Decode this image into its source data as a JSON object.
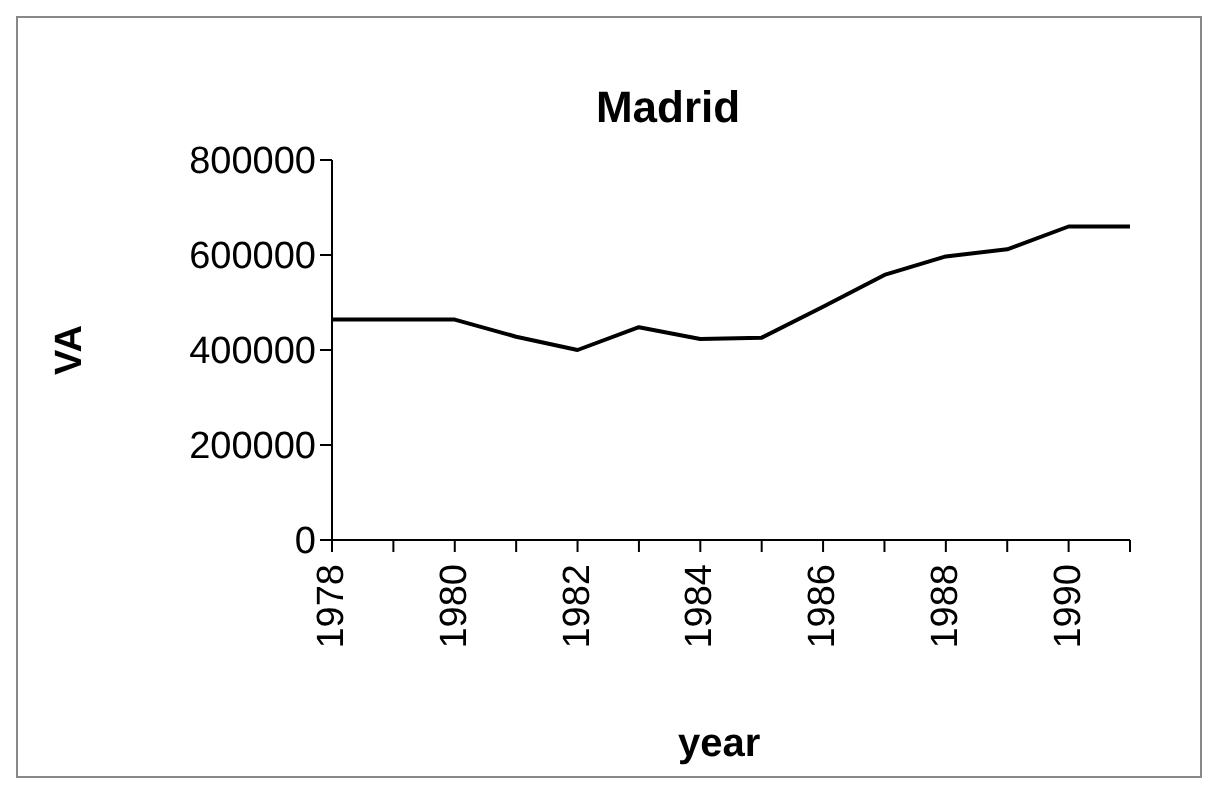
{
  "chart_data": {
    "type": "line",
    "title": "Madrid",
    "xlabel": "year",
    "ylabel": "VA",
    "x": [
      1978,
      1979,
      1980,
      1981,
      1982,
      1983,
      1984,
      1985,
      1986,
      1987,
      1988,
      1989,
      1990,
      1991
    ],
    "series": [
      {
        "color": "#000000",
        "values": [
          464000,
          464000,
          464000,
          428000,
          400000,
          448000,
          423000,
          426000,
          491000,
          558000,
          597000,
          612000,
          660000,
          660000
        ]
      }
    ],
    "xlim": [
      1978,
      1991
    ],
    "xticks": [
      1978,
      {
        "value": 1979,
        "label": null
      },
      1980,
      {
        "value": 1981,
        "label": null
      },
      1982,
      {
        "value": 1983,
        "label": null
      },
      1984,
      {
        "value": 1985,
        "label": null
      },
      1986,
      {
        "value": 1987,
        "label": null
      },
      1988,
      {
        "value": 1989,
        "label": null
      },
      1990,
      {
        "value": 1991,
        "label": null
      }
    ],
    "ylim": [
      0,
      800000
    ],
    "yticks": [
      0,
      200000,
      400000,
      600000,
      800000
    ],
    "grid": false,
    "legend": false,
    "marker": "none",
    "line_style": "solid"
  }
}
